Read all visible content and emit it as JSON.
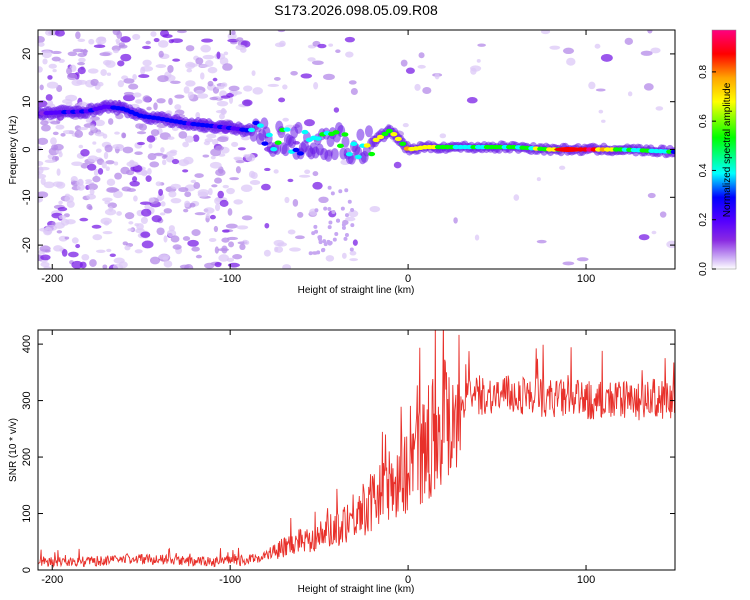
{
  "figure_title": "S173.2026.098.05.09.R08",
  "chart_data": [
    {
      "type": "heatmap",
      "title": "S173.2026.098.05.09.R08",
      "xlabel": "Height of straight line (km)",
      "ylabel": "Frequency (Hz)",
      "xlim": [
        -208,
        150
      ],
      "ylim": [
        -25,
        25
      ],
      "xticks": [
        -200,
        -100,
        0,
        100
      ],
      "yticks": [
        -20,
        -10,
        0,
        10,
        20
      ],
      "ridge": {
        "x": [
          -208,
          -195,
          -180,
          -170,
          -160,
          -150,
          -140,
          -125,
          -100,
          -90,
          -80,
          -70,
          -60,
          -50,
          -40,
          -30,
          -20,
          -10,
          0,
          10,
          20,
          40,
          60,
          80,
          100,
          120,
          150
        ],
        "freq": [
          7.5,
          7.8,
          8.0,
          9.0,
          8.5,
          7.0,
          6.5,
          5.5,
          4.5,
          4.0,
          3.0,
          2.0,
          1.5,
          1.0,
          2.0,
          0.0,
          1.5,
          4.0,
          0.0,
          0.5,
          0.5,
          0.5,
          0.5,
          0.0,
          0.0,
          0.0,
          -0.5
        ],
        "amplitude": [
          0.25,
          0.3,
          0.35,
          0.3,
          0.4,
          0.4,
          0.35,
          0.4,
          0.3,
          0.4,
          0.45,
          0.5,
          0.45,
          0.5,
          0.55,
          0.5,
          0.6,
          0.65,
          0.7,
          0.75,
          0.55,
          0.55,
          0.55,
          0.6,
          0.9,
          0.55,
          0.5
        ]
      }
    },
    {
      "type": "colorbar",
      "label": "Normalized spectral amplitude",
      "range": [
        0,
        0.97
      ],
      "ticks": [
        0.0,
        0.2,
        0.4,
        0.6,
        0.8
      ],
      "tick_labels": [
        "0.0",
        "0.2",
        "0.4",
        "0.6",
        "0.8"
      ],
      "colors": [
        "#ffffff",
        "#c9a8f4",
        "#8a2be2",
        "#5500ff",
        "#0000ff",
        "#00ffff",
        "#00ff00",
        "#ffff00",
        "#ffa500",
        "#ff0000",
        "#ff0080"
      ]
    },
    {
      "type": "line",
      "xlabel": "Height of straight line (km)",
      "ylabel": "SNR (10 * v/v)",
      "xlim": [
        -208,
        150
      ],
      "ylim": [
        0,
        425
      ],
      "xticks": [
        -200,
        -100,
        0,
        100
      ],
      "yticks": [
        0,
        100,
        200,
        300,
        400
      ],
      "color": "#e8302a",
      "series": [
        {
          "name": "SNR",
          "x": [
            -208,
            -180,
            -150,
            -120,
            -100,
            -90,
            -80,
            -70,
            -60,
            -50,
            -40,
            -30,
            -20,
            -10,
            0,
            10,
            20,
            30,
            40,
            60,
            80,
            100,
            120,
            150
          ],
          "values": [
            15,
            15,
            20,
            15,
            15,
            18,
            25,
            40,
            55,
            60,
            75,
            100,
            120,
            150,
            180,
            220,
            270,
            300,
            310,
            310,
            305,
            300,
            300,
            300
          ]
        }
      ]
    }
  ]
}
